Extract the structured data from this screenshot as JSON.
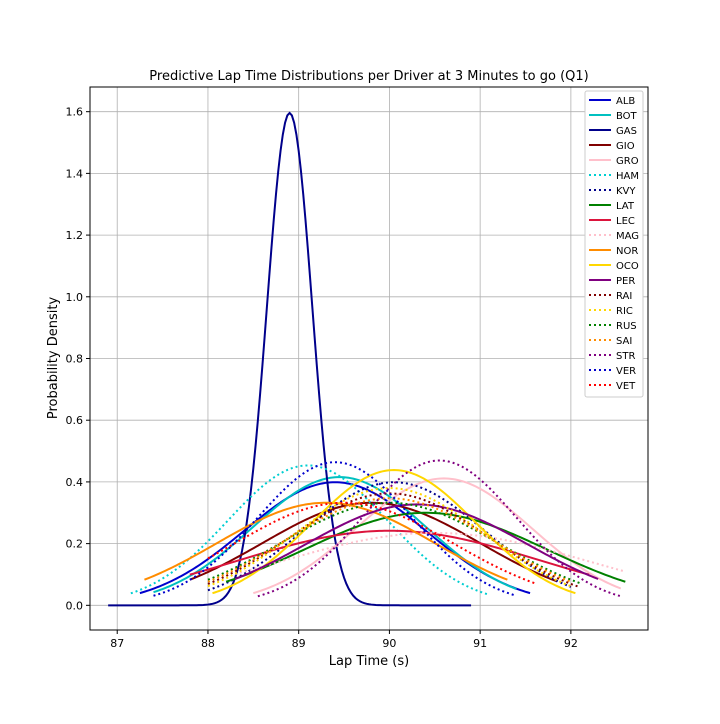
{
  "chart_data": {
    "type": "line",
    "title": "Predictive Lap Time Distributions per Driver at 3 Minutes to go (Q1)",
    "xlabel": "Lap Time (s)",
    "ylabel": "Probability Density",
    "xlim": [
      86.7,
      92.85
    ],
    "ylim": [
      -0.08,
      1.68
    ],
    "xticks": [
      "87",
      "88",
      "89",
      "90",
      "91",
      "92"
    ],
    "yticks": [
      "0.0",
      "0.2",
      "0.4",
      "0.6",
      "0.8",
      "1.0",
      "1.2",
      "1.4",
      "1.6"
    ],
    "grid": true,
    "legend_position": "top-right",
    "series": [
      {
        "name": "ALB",
        "color": "#0000CD",
        "style": "solid",
        "mean": 89.4,
        "sd": 1.0,
        "x_range": [
          87.25,
          91.55
        ]
      },
      {
        "name": "BOT",
        "color": "#00C0C0",
        "style": "solid",
        "mean": 89.45,
        "sd": 0.96,
        "x_range": [
          87.4,
          91.4
        ]
      },
      {
        "name": "GAS",
        "color": "#00008B",
        "style": "solid",
        "mean": 88.9,
        "sd": 0.25,
        "x_range": [
          86.9,
          90.9
        ]
      },
      {
        "name": "GIO",
        "color": "#800000",
        "style": "solid",
        "mean": 89.8,
        "sd": 1.2,
        "x_range": [
          87.8,
          91.85
        ]
      },
      {
        "name": "GRO",
        "color": "#FFC0CB",
        "style": "solid",
        "mean": 90.6,
        "sd": 0.97,
        "x_range": [
          88.5,
          92.55
        ]
      },
      {
        "name": "HAM",
        "color": "#00CED1",
        "style": "dotted",
        "mean": 89.1,
        "sd": 0.88,
        "x_range": [
          87.15,
          91.1
        ]
      },
      {
        "name": "KVY",
        "color": "#00008B",
        "style": "dotted",
        "mean": 90.05,
        "sd": 1.0,
        "x_range": [
          88.0,
          92.0
        ]
      },
      {
        "name": "LAT",
        "color": "#008000",
        "style": "solid",
        "mean": 90.4,
        "sd": 1.33,
        "x_range": [
          88.2,
          92.6
        ]
      },
      {
        "name": "LEC",
        "color": "#DC143C",
        "style": "solid",
        "mean": 90.0,
        "sd": 1.65,
        "x_range": [
          87.8,
          92.2
        ]
      },
      {
        "name": "MAG",
        "color": "#FFC0CB",
        "style": "dotted",
        "mean": 90.5,
        "sd": 1.7,
        "x_range": [
          88.3,
          92.6
        ]
      },
      {
        "name": "NOR",
        "color": "#FF8C00",
        "style": "solid",
        "mean": 89.3,
        "sd": 1.2,
        "x_range": [
          87.3,
          91.3
        ]
      },
      {
        "name": "OCO",
        "color": "#FFD700",
        "style": "solid",
        "mean": 90.05,
        "sd": 0.91,
        "x_range": [
          88.05,
          92.05
        ]
      },
      {
        "name": "PER",
        "color": "#800080",
        "style": "solid",
        "mean": 90.3,
        "sd": 1.22,
        "x_range": [
          88.3,
          92.3
        ]
      },
      {
        "name": "RAI",
        "color": "#800000",
        "style": "dotted",
        "mean": 90.0,
        "sd": 1.1,
        "x_range": [
          88.0,
          92.1
        ]
      },
      {
        "name": "RIC",
        "color": "#FFD700",
        "style": "dotted",
        "mean": 90.0,
        "sd": 1.05,
        "x_range": [
          88.0,
          92.0
        ]
      },
      {
        "name": "RUS",
        "color": "#008000",
        "style": "dotted",
        "mean": 90.0,
        "sd": 1.2,
        "x_range": [
          88.0,
          92.1
        ]
      },
      {
        "name": "SAI",
        "color": "#FF8C00",
        "style": "dotted",
        "mean": 90.0,
        "sd": 1.15,
        "x_range": [
          88.0,
          92.0
        ]
      },
      {
        "name": "STR",
        "color": "#800080",
        "style": "dotted",
        "mean": 90.55,
        "sd": 0.85,
        "x_range": [
          88.55,
          92.55
        ]
      },
      {
        "name": "VER",
        "color": "#0000CD",
        "style": "dotted",
        "mean": 89.4,
        "sd": 0.86,
        "x_range": [
          87.4,
          91.4
        ]
      },
      {
        "name": "VET",
        "color": "#FF0000",
        "style": "dotted",
        "mean": 89.5,
        "sd": 1.2,
        "x_range": [
          88.0,
          91.6
        ]
      }
    ]
  }
}
